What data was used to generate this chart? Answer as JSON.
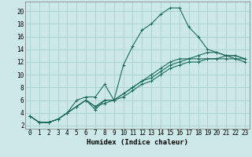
{
  "title": "",
  "xlabel": "Humidex (Indice chaleur)",
  "ylabel": "",
  "background_color": "#cce9e8",
  "grid_color": "#aacfcf",
  "line_color": "#1a6b5a",
  "xlim": [
    -0.5,
    23.5
  ],
  "ylim": [
    1.5,
    21.5
  ],
  "yticks": [
    2,
    4,
    6,
    8,
    10,
    12,
    14,
    16,
    18,
    20
  ],
  "xticks": [
    0,
    1,
    2,
    3,
    4,
    5,
    6,
    7,
    8,
    9,
    10,
    11,
    12,
    13,
    14,
    15,
    16,
    17,
    18,
    19,
    20,
    21,
    22,
    23
  ],
  "series": [
    {
      "x": [
        0,
        1,
        2,
        3,
        4,
        5,
        6,
        7,
        8,
        9,
        10,
        11,
        12,
        13,
        14,
        15,
        16,
        17,
        18,
        19,
        20,
        21,
        22,
        23
      ],
      "y": [
        3.5,
        2.5,
        2.5,
        3.0,
        4.0,
        6.0,
        6.5,
        6.5,
        8.5,
        6.0,
        11.5,
        14.5,
        17.0,
        18.0,
        19.5,
        20.5,
        20.5,
        17.5,
        16.0,
        14.0,
        13.5,
        13.0,
        13.0,
        12.5
      ]
    },
    {
      "x": [
        0,
        1,
        2,
        3,
        4,
        5,
        6,
        7,
        8,
        9,
        10,
        11,
        12,
        13,
        14,
        15,
        16,
        17,
        18,
        19,
        20,
        21,
        22,
        23
      ],
      "y": [
        3.5,
        2.5,
        2.5,
        3.0,
        4.0,
        5.0,
        6.0,
        4.5,
        6.0,
        6.0,
        7.0,
        8.0,
        9.0,
        10.0,
        11.0,
        12.0,
        12.5,
        12.5,
        13.0,
        13.5,
        13.5,
        13.0,
        13.0,
        12.5
      ]
    },
    {
      "x": [
        0,
        1,
        2,
        3,
        4,
        5,
        6,
        7,
        8,
        9,
        10,
        11,
        12,
        13,
        14,
        15,
        16,
        17,
        18,
        19,
        20,
        21,
        22,
        23
      ],
      "y": [
        3.5,
        2.5,
        2.5,
        3.0,
        4.0,
        5.0,
        6.0,
        5.0,
        6.0,
        6.0,
        7.0,
        8.0,
        9.0,
        9.5,
        10.5,
        11.5,
        12.0,
        12.5,
        12.5,
        12.5,
        12.5,
        13.0,
        12.5,
        12.5
      ]
    },
    {
      "x": [
        0,
        1,
        2,
        3,
        4,
        5,
        6,
        7,
        8,
        9,
        10,
        11,
        12,
        13,
        14,
        15,
        16,
        17,
        18,
        19,
        20,
        21,
        22,
        23
      ],
      "y": [
        3.5,
        2.5,
        2.5,
        3.0,
        4.0,
        5.0,
        6.0,
        5.0,
        5.5,
        6.0,
        6.5,
        7.5,
        8.5,
        9.0,
        10.0,
        11.0,
        11.5,
        12.0,
        12.0,
        12.5,
        12.5,
        12.5,
        12.5,
        12.0
      ]
    }
  ],
  "marker": "+",
  "markersize": 3,
  "linewidth": 0.8,
  "xlabel_fontsize": 6.5,
  "tick_fontsize": 5.5
}
